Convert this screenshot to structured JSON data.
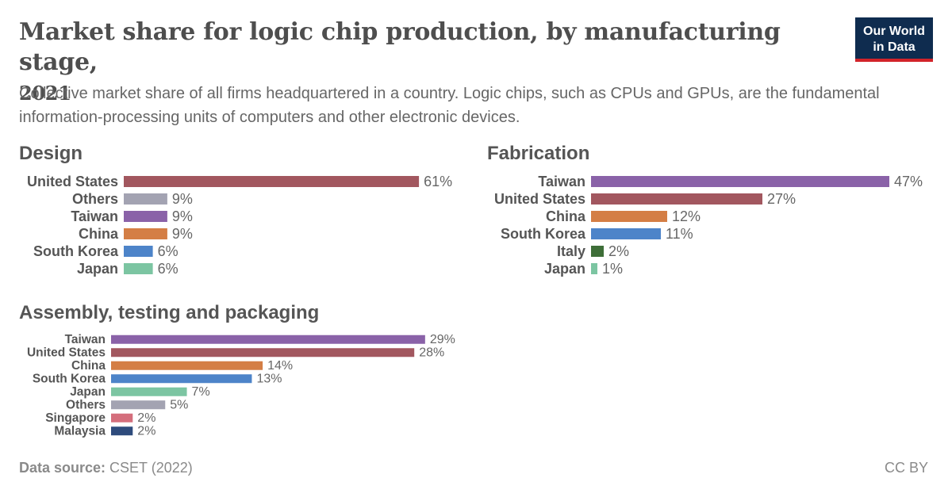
{
  "header": {
    "title_line1": "Market share for logic chip production, by manufacturing stage,",
    "title_line2": "2021",
    "subtitle": "Collective market share of all firms headquartered in a country. Logic chips, such as CPUs and GPUs, are the fundamental information-processing units of computers and other electronic devices.",
    "logo_line1": "Our World",
    "logo_line2": "in Data"
  },
  "footer": {
    "source_label": "Data source:",
    "source_value": " CSET (2022)",
    "license": "CC BY"
  },
  "colors": {
    "United States": "#a2575f",
    "Others": "#a3a3b2",
    "Taiwan": "#8a62a8",
    "China": "#d47e45",
    "South Korea": "#4d84c9",
    "Japan": "#7cc5a2",
    "Italy": "#3e6e38",
    "Singapore": "#d46e7c",
    "Malaysia": "#2e4b7c"
  },
  "chart_data": [
    {
      "type": "bar",
      "title": "Design",
      "categories": [
        "United States",
        "Others",
        "Taiwan",
        "China",
        "South Korea",
        "Japan"
      ],
      "values": [
        61,
        9,
        9,
        9,
        6,
        6
      ],
      "labels": [
        "61%",
        "9%",
        "9%",
        "9%",
        "6%",
        "6%"
      ],
      "unit": "%"
    },
    {
      "type": "bar",
      "title": "Fabrication",
      "categories": [
        "Taiwan",
        "United States",
        "China",
        "South Korea",
        "Italy",
        "Japan"
      ],
      "values": [
        47,
        27,
        12,
        11,
        2,
        1
      ],
      "labels": [
        "47%",
        "27%",
        "12%",
        "11%",
        "2%",
        "1%"
      ],
      "unit": "%"
    },
    {
      "type": "bar",
      "title": "Assembly, testing and packaging",
      "categories": [
        "Taiwan",
        "United States",
        "China",
        "South Korea",
        "Japan",
        "Others",
        "Singapore",
        "Malaysia"
      ],
      "values": [
        29,
        28,
        14,
        13,
        7,
        5,
        2,
        2
      ],
      "labels": [
        "29%",
        "28%",
        "14%",
        "13%",
        "7%",
        "5%",
        "2%",
        "2%"
      ],
      "unit": "%"
    }
  ]
}
